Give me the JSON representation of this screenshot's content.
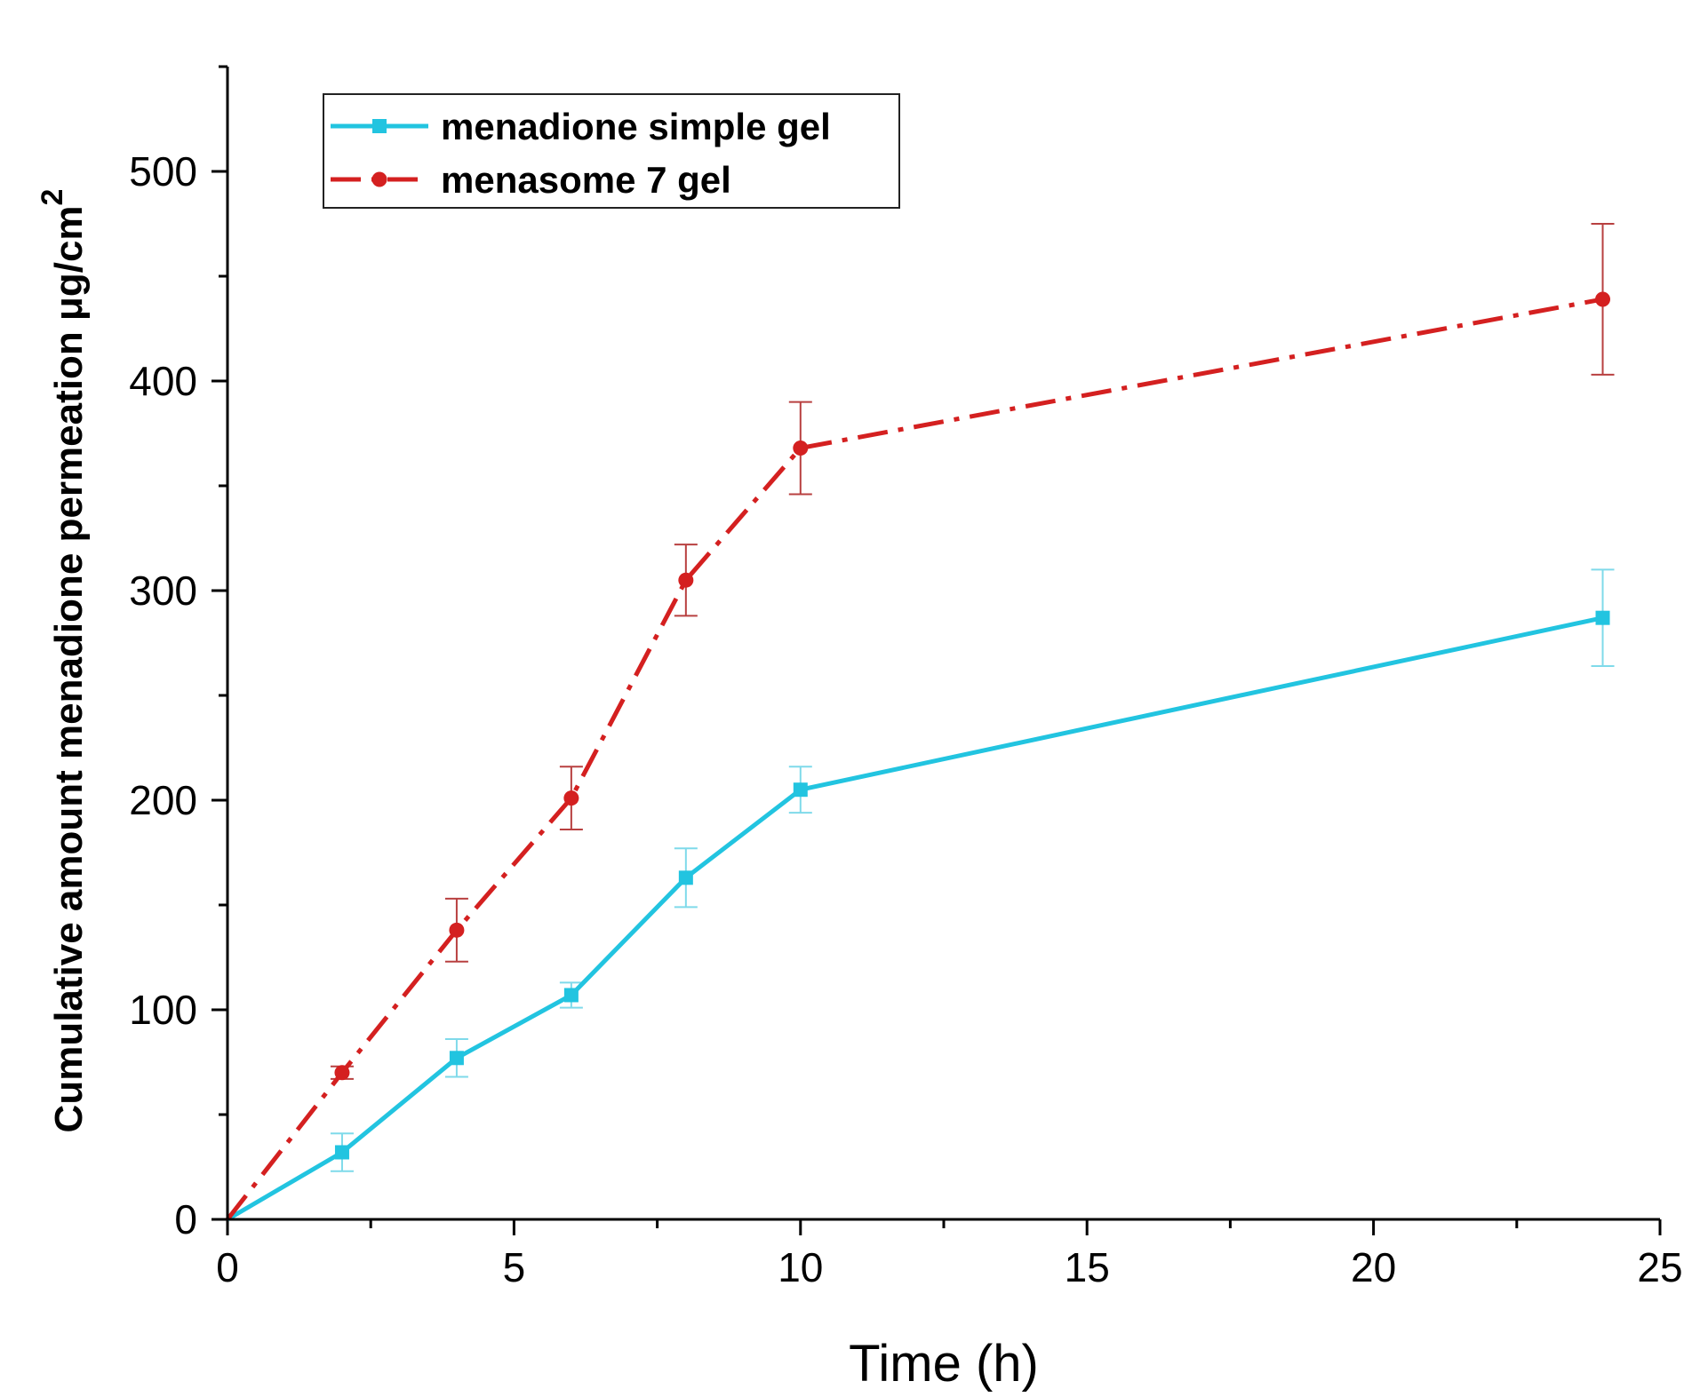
{
  "chart_data": {
    "type": "line",
    "title": "",
    "xlabel": "Time (h)",
    "ylabel": "Cumulative amount menadione permeation μg/cm",
    "ylabel_superscript": "2",
    "xlim": [
      0,
      25
    ],
    "ylim": [
      0,
      550
    ],
    "x_ticks": [
      0,
      5,
      10,
      15,
      20,
      25
    ],
    "x_tick_labels": [
      "0",
      "5",
      "10",
      "15",
      "20",
      "25"
    ],
    "y_ticks": [
      0,
      100,
      200,
      300,
      400,
      500
    ],
    "y_tick_labels": [
      "0",
      "100",
      "200",
      "300",
      "400",
      "500"
    ],
    "x_minor_step": 2.5,
    "y_minor_step": 50,
    "grid": false,
    "legend_position": "top-left",
    "series": [
      {
        "name": "menadione simple gel",
        "color": "#22c4e0",
        "error_color": "#7fdaea",
        "line_style": "solid",
        "marker": "square",
        "x": [
          0,
          2,
          4,
          6,
          8,
          10,
          24
        ],
        "y": [
          0,
          32,
          77,
          107,
          163,
          205,
          287
        ],
        "error": [
          0,
          9,
          9,
          6,
          14,
          11,
          23
        ]
      },
      {
        "name": "menasome 7 gel",
        "color": "#d42020",
        "error_color": "#b84040",
        "line_style": "dashdot",
        "marker": "circle",
        "x": [
          0,
          2,
          4,
          6,
          8,
          10,
          24
        ],
        "y": [
          0,
          70,
          138,
          201,
          305,
          368,
          439
        ],
        "error": [
          0,
          3,
          15,
          15,
          17,
          22,
          36
        ]
      }
    ]
  }
}
